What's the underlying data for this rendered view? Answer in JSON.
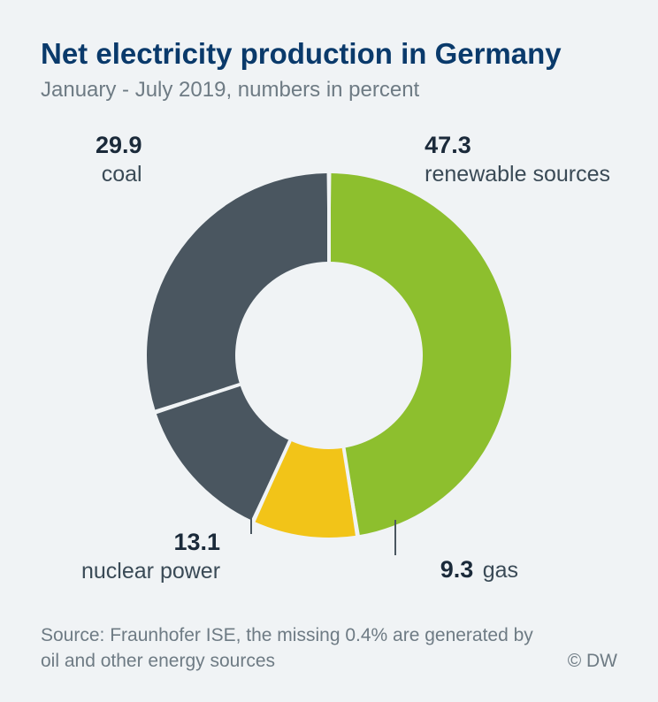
{
  "title": "Net electricity production in Germany",
  "subtitle": "January - July 2019, numbers in percent",
  "source_line": "Source: Fraunhofer ISE, the missing 0.4% are generated by oil and other energy sources",
  "copyright": "© DW",
  "chart": {
    "type": "donut",
    "background_color": "#f0f3f5",
    "title_color": "#0a3a6b",
    "subtitle_color": "#6e7b84",
    "value_fontsize": 27,
    "label_fontsize": 25,
    "outer_radius": 206,
    "inner_radius": 106,
    "gap_color": "#f0f3f5",
    "separator_color": "#5e6a73",
    "slices": [
      {
        "key": "renewables",
        "label": "renewable sources",
        "value": 47.3,
        "color": "#8dbf2e"
      },
      {
        "key": "gas",
        "label": "gas",
        "value": 9.3,
        "color": "#f2c418"
      },
      {
        "key": "nuclear",
        "label": "nuclear power",
        "value": 13.1,
        "color": "#4a5660"
      },
      {
        "key": "coal",
        "label": "coal",
        "value": 29.9,
        "color": "#4a5660"
      }
    ]
  }
}
